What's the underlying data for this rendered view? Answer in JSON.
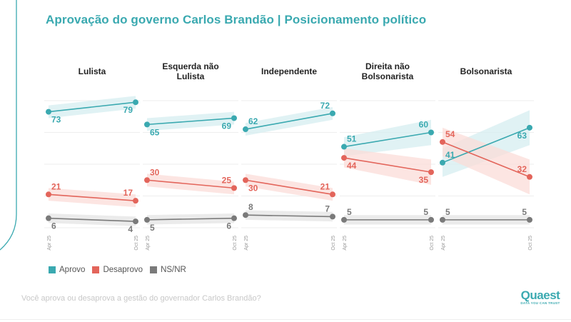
{
  "title": "Aprovação do governo Carlos Brandão | Posicionamento político",
  "question": "Você aprova ou desaprova a gestão do governador Carlos Brandão?",
  "logo": {
    "name": "Quaest",
    "tagline": "DATA YOU CAN TRUST"
  },
  "colors": {
    "aprovo": "#3aa9b0",
    "desaprovo": "#e3655b",
    "nsnr": "#7a7a7a",
    "title": "#3aa9b0"
  },
  "legend": [
    {
      "key": "aprovo",
      "label": "Aprovo"
    },
    {
      "key": "desaprovo",
      "label": "Desaprovo"
    },
    {
      "key": "nsnr",
      "label": "NS/NR"
    }
  ],
  "chart_data": {
    "type": "line",
    "title": "Aprovação do governo Carlos Brandão | Posicionamento político",
    "x": [
      "Apr 25",
      "Oct 25"
    ],
    "ylim": [
      0,
      80
    ],
    "grid": true,
    "gridlines": [
      0,
      20,
      40,
      60,
      80
    ],
    "legend_position": "bottom-left",
    "panels": [
      {
        "title": "Lulista",
        "series": [
          {
            "name": "Aprovo",
            "values": [
              73,
              79
            ]
          },
          {
            "name": "Desaprovo",
            "values": [
              21,
              17
            ]
          },
          {
            "name": "NS/NR",
            "values": [
              6,
              4
            ]
          }
        ]
      },
      {
        "title": "Esquerda não Lulista",
        "series": [
          {
            "name": "Aprovo",
            "values": [
              65,
              69
            ]
          },
          {
            "name": "Desaprovo",
            "values": [
              30,
              25
            ]
          },
          {
            "name": "NS/NR",
            "values": [
              5,
              6
            ]
          }
        ]
      },
      {
        "title": "Independente",
        "series": [
          {
            "name": "Aprovo",
            "values": [
              62,
              72
            ]
          },
          {
            "name": "Desaprovo",
            "values": [
              30,
              21
            ]
          },
          {
            "name": "NS/NR",
            "values": [
              8,
              7
            ]
          }
        ]
      },
      {
        "title": "Direita não Bolsonarista",
        "series": [
          {
            "name": "Aprovo",
            "values": [
              51,
              60
            ]
          },
          {
            "name": "Desaprovo",
            "values": [
              44,
              35
            ]
          },
          {
            "name": "NS/NR",
            "values": [
              5,
              5
            ]
          }
        ]
      },
      {
        "title": "Bolsonarista",
        "series": [
          {
            "name": "Aprovo",
            "values": [
              41,
              63
            ]
          },
          {
            "name": "Desaprovo",
            "values": [
              54,
              32
            ]
          },
          {
            "name": "NS/NR",
            "values": [
              5,
              5
            ]
          }
        ]
      }
    ]
  }
}
